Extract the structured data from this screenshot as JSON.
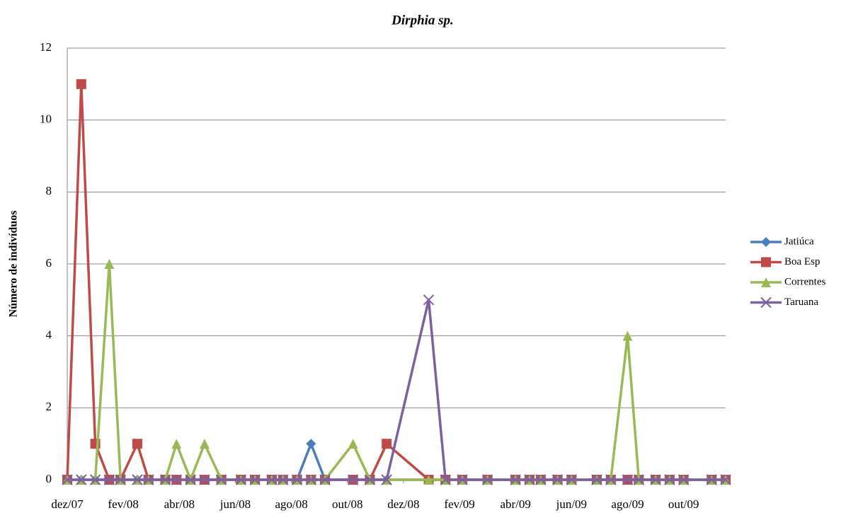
{
  "chart_data": {
    "type": "line",
    "title": "Dirphia sp.",
    "y_label": "Número de indivíduos",
    "x": [
      0,
      0.5,
      1.0,
      1.5,
      1.9,
      2.5,
      2.9,
      3.5,
      3.9,
      4.4,
      4.9,
      5.5,
      6.2,
      6.7,
      7.3,
      7.7,
      8.2,
      8.7,
      9.2,
      10.2,
      10.8,
      11.4,
      12.9,
      13.5,
      14.1,
      15.0,
      16.0,
      16.5,
      16.9,
      17.5,
      18.0,
      18.9,
      19.4,
      20.0,
      20.4,
      21.0,
      21.5,
      22.0,
      23.0,
      23.5
    ],
    "xlim": [
      0,
      23.5
    ],
    "xticks": [
      {
        "value": 0,
        "label": "dez/07"
      },
      {
        "value": 2,
        "label": "fev/08"
      },
      {
        "value": 4,
        "label": "abr/08"
      },
      {
        "value": 6,
        "label": "jun/08"
      },
      {
        "value": 8,
        "label": "ago/08"
      },
      {
        "value": 10,
        "label": "out/08"
      },
      {
        "value": 12,
        "label": "dez/08"
      },
      {
        "value": 14,
        "label": "fev/09"
      },
      {
        "value": 16,
        "label": "abr/09"
      },
      {
        "value": 18,
        "label": "jun/09"
      },
      {
        "value": 20,
        "label": "ago/09"
      },
      {
        "value": 22,
        "label": "out/09"
      }
    ],
    "ylim": [
      0,
      12
    ],
    "yticks": [
      0,
      2,
      4,
      6,
      8,
      10,
      12
    ],
    "grid": true,
    "legend": "right",
    "series": [
      {
        "name": "Jatiúca",
        "color": "#4a7ebb",
        "marker": "diamond",
        "values": [
          0,
          0,
          0,
          0,
          0,
          0,
          0,
          0,
          0,
          0,
          0,
          0,
          0,
          0,
          0,
          0,
          0,
          1,
          0,
          0,
          0,
          0,
          0,
          0,
          0,
          0,
          0,
          0,
          0,
          0,
          0,
          0,
          0,
          0,
          0,
          0,
          0,
          0,
          0,
          0
        ]
      },
      {
        "name": "Boa Esp",
        "color": "#be4b48",
        "marker": "square",
        "values": [
          0,
          11,
          1,
          0,
          0,
          1,
          0,
          0,
          0,
          0,
          0,
          0,
          0,
          0,
          0,
          0,
          0,
          0,
          0,
          0,
          0,
          1,
          0,
          0,
          0,
          0,
          0,
          0,
          0,
          0,
          0,
          0,
          0,
          0,
          0,
          0,
          0,
          0,
          0,
          0
        ]
      },
      {
        "name": "Correntes",
        "color": "#98b954",
        "marker": "triangle",
        "values": [
          0,
          0,
          0,
          6,
          0,
          0,
          0,
          0,
          1,
          0,
          1,
          0,
          0,
          0,
          0,
          0,
          0,
          0,
          0,
          1,
          0,
          0,
          0,
          0,
          0,
          0,
          0,
          0,
          0,
          0,
          0,
          0,
          0,
          4,
          0,
          0,
          0,
          0,
          0,
          0
        ]
      },
      {
        "name": "Taruana",
        "color": "#7d60a0",
        "marker": "x",
        "values": [
          0,
          0,
          0,
          0,
          0,
          0,
          0,
          0,
          0,
          0,
          0,
          0,
          0,
          0,
          0,
          0,
          0,
          0,
          0,
          0,
          0,
          0,
          5,
          0,
          0,
          0,
          0,
          0,
          0,
          0,
          0,
          0,
          0,
          0,
          0,
          0,
          0,
          0,
          0,
          0
        ]
      }
    ]
  }
}
